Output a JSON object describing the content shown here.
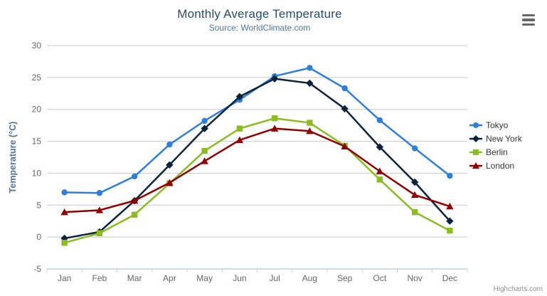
{
  "chart": {
    "credit": "Highcharts.com"
  },
  "menu": {
    "icon": "hamburger-icon"
  },
  "chart_data": {
    "type": "line",
    "title": "Monthly Average Temperature",
    "subtitle": "Source: WorldClimate.com",
    "xlabel": "",
    "ylabel": "Temperature (°C)",
    "categories": [
      "Jan",
      "Feb",
      "Mar",
      "Apr",
      "May",
      "Jun",
      "Jul",
      "Aug",
      "Sep",
      "Oct",
      "Nov",
      "Dec"
    ],
    "series": [
      {
        "name": "Tokyo",
        "color": "#2f7ed8",
        "marker": "circle",
        "values": [
          7.0,
          6.9,
          9.5,
          14.5,
          18.2,
          21.5,
          25.2,
          26.5,
          23.3,
          18.3,
          13.9,
          9.6
        ]
      },
      {
        "name": "New York",
        "color": "#0d233a",
        "marker": "diamond",
        "values": [
          -0.2,
          0.8,
          5.7,
          11.3,
          17.0,
          22.0,
          24.8,
          24.1,
          20.1,
          14.1,
          8.6,
          2.5
        ]
      },
      {
        "name": "Berlin",
        "color": "#8bbc21",
        "marker": "square",
        "values": [
          -0.9,
          0.6,
          3.5,
          8.4,
          13.5,
          17.0,
          18.6,
          17.9,
          14.3,
          9.0,
          3.9,
          1.0
        ]
      },
      {
        "name": "London",
        "color": "#910000",
        "marker": "triangle",
        "values": [
          3.9,
          4.2,
          5.7,
          8.5,
          11.9,
          15.2,
          17.0,
          16.6,
          14.2,
          10.3,
          6.6,
          4.8
        ]
      }
    ],
    "ylim": [
      -5,
      30
    ],
    "yticks": [
      -5,
      0,
      5,
      10,
      15,
      20,
      25,
      30
    ],
    "grid": true,
    "legend_position": "right",
    "colors": {
      "grid_line": "#c8c8c8",
      "axis_line": "#c0d0e0",
      "tick_label": "#666666",
      "axis_title": "#4d759e",
      "title": "#274b6d",
      "subtitle": "#4d759e",
      "legend_text": "#333333"
    }
  }
}
